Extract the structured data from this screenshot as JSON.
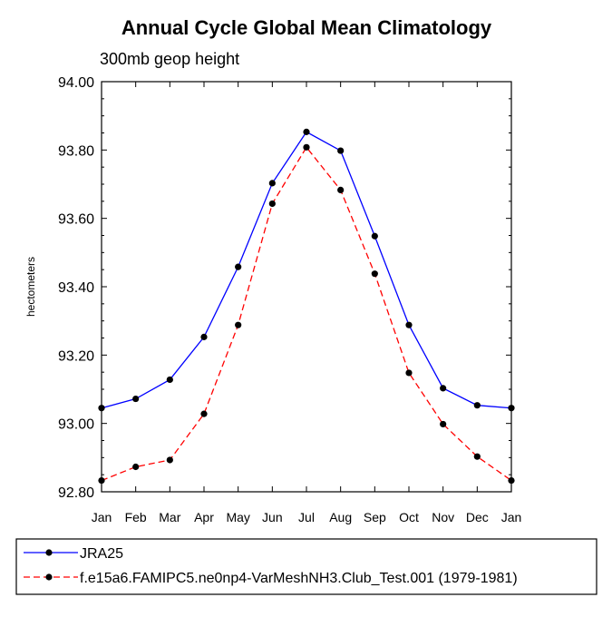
{
  "chart_data": {
    "type": "line",
    "title": "Annual Cycle Global Mean Climatology",
    "subtitle": "300mb geop height",
    "ylabel": "hectometers",
    "xlabel": "",
    "categories": [
      "Jan",
      "Feb",
      "Mar",
      "Apr",
      "May",
      "Jun",
      "Jul",
      "Aug",
      "Sep",
      "Oct",
      "Nov",
      "Dec",
      "Jan"
    ],
    "ylim": [
      92.8,
      94.0
    ],
    "yticks": [
      "92.80",
      "93.00",
      "93.20",
      "93.40",
      "93.60",
      "93.80",
      "94.00"
    ],
    "grid": false,
    "legend_position": "bottom",
    "series": [
      {
        "name": "JRA25",
        "color": "#0000ff",
        "dash": "solid",
        "values": [
          93.045,
          93.072,
          93.128,
          93.253,
          93.458,
          93.703,
          93.853,
          93.798,
          93.548,
          93.288,
          93.103,
          93.053,
          93.045
        ]
      },
      {
        "name": "f.e15a6.FAMIPC5.ne0np4-VarMeshNH3.Club_Test.001 (1979-1981)",
        "color": "#ff0000",
        "dash": "dashed",
        "values": [
          92.833,
          92.873,
          92.893,
          93.028,
          93.288,
          93.643,
          93.808,
          93.683,
          93.438,
          93.148,
          92.998,
          92.903,
          92.833
        ]
      }
    ]
  }
}
